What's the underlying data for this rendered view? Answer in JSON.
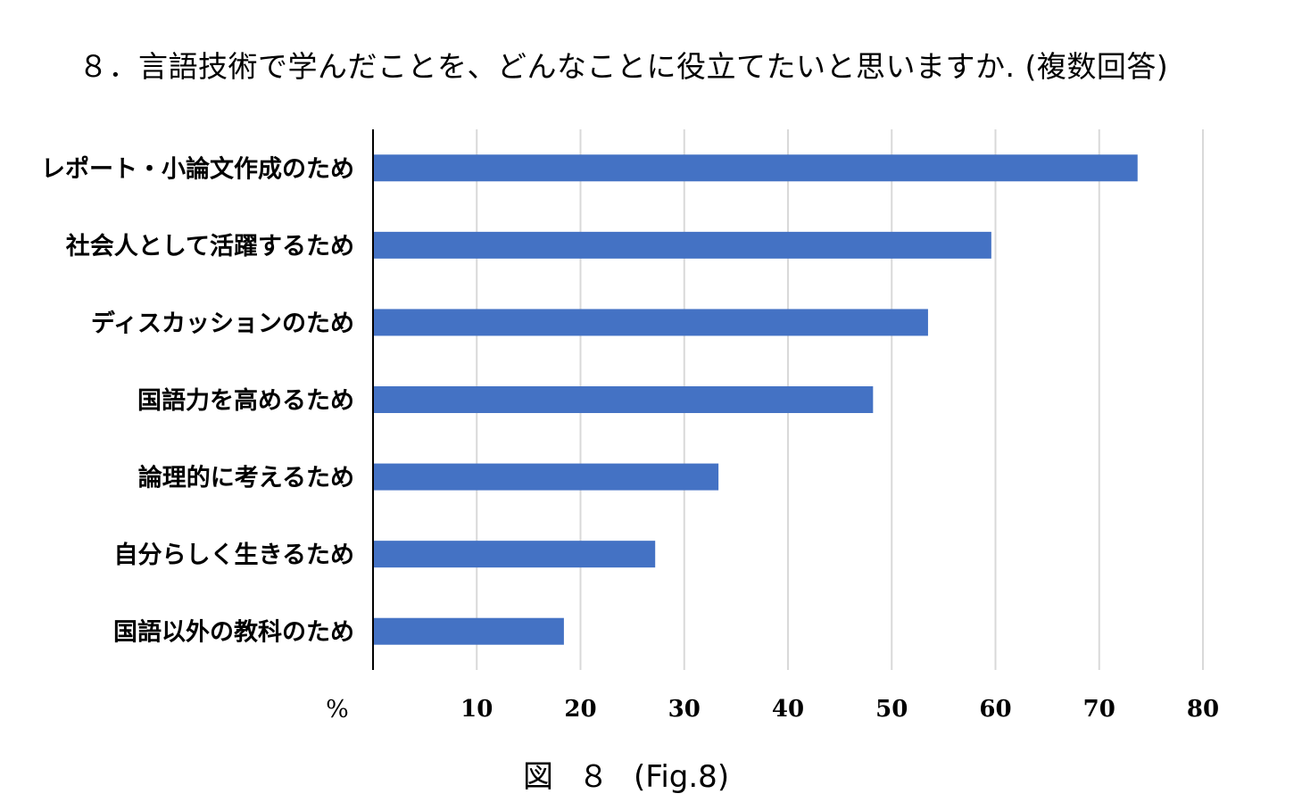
{
  "page": {
    "title": "８．言語技術で学んだことを、どんなことに役立てたいと思いますか. (複数回答)",
    "caption": {
      "fig_jp": "図",
      "fig_num": "８",
      "fig_en": "(Fig.8)"
    }
  },
  "chart_data": {
    "type": "bar",
    "orientation": "horizontal",
    "title": "８．言語技術で学んだことを、どんなことに役立てたいと思いますか. (複数回答)",
    "categories": [
      "レポート・小論文作成のため",
      "社会人として活躍するため",
      "ディスカッションのため",
      "国語力を高めるため",
      "論理的に考えるため",
      "自分らしく生きるため",
      "国語以外の教科のため"
    ],
    "values": [
      73.7,
      59.6,
      53.5,
      48.2,
      33.3,
      27.2,
      18.4
    ],
    "xlabel": "%",
    "xlim": [
      0,
      80
    ],
    "xticks": [
      10,
      20,
      30,
      40,
      50,
      60,
      70,
      80
    ],
    "grid": true,
    "bar_color": "#4472C4",
    "grid_color": "#D9D9D9"
  }
}
